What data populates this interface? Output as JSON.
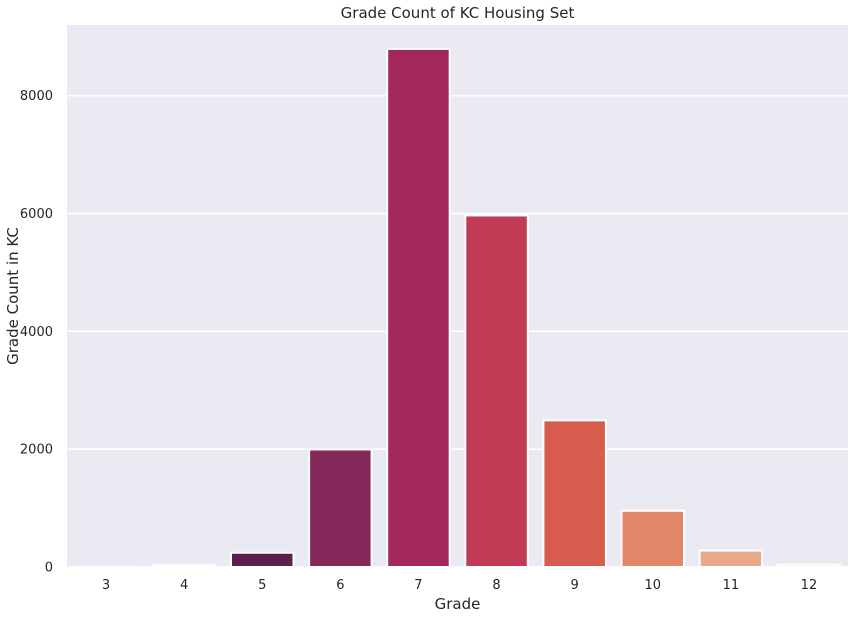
{
  "chart_data": {
    "type": "bar",
    "title": "Grade Count of KC Housing Set",
    "xlabel": "Grade",
    "ylabel": "Grade Count in KC",
    "categories": [
      "3",
      "4",
      "5",
      "6",
      "7",
      "8",
      "9",
      "10",
      "11",
      "12"
    ],
    "values": [
      3,
      29,
      242,
      1995,
      8794,
      5967,
      2489,
      955,
      278,
      38
    ],
    "colors": [
      "#030512",
      "#1a1230",
      "#5c1e4c",
      "#84295a",
      "#a3275b",
      "#c13b54",
      "#d75c4e",
      "#e2876a",
      "#eaa98a",
      "#f3cdb4"
    ],
    "ylim": [
      0,
      9200
    ],
    "yticks": [
      0,
      2000,
      4000,
      6000,
      8000
    ],
    "grid": true,
    "background": "#eaeaf2",
    "gridColor": "#ffffff"
  }
}
